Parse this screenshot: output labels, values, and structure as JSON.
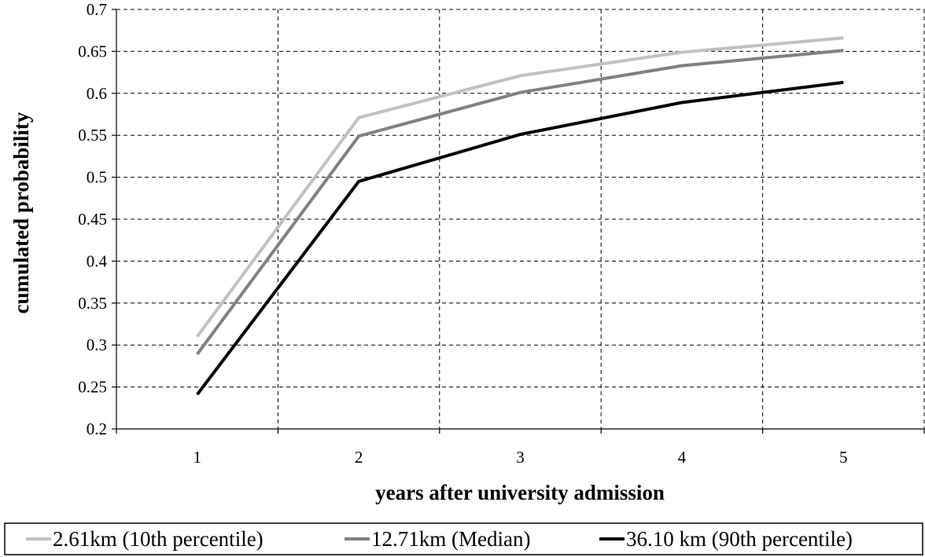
{
  "chart_data": {
    "type": "line",
    "title": "",
    "xlabel": "years after university admission",
    "ylabel": "cumulated probability",
    "categories": [
      "1",
      "2",
      "3",
      "4",
      "5"
    ],
    "ylim": [
      0.2,
      0.7
    ],
    "yticks": [
      "0.2",
      "0.25",
      "0.3",
      "0.35",
      "0.4",
      "0.45",
      "0.5",
      "0.55",
      "0.6",
      "0.65",
      "0.7"
    ],
    "grid": true,
    "legend_position": "bottom",
    "series": [
      {
        "name": "2.61km (10th percentile)",
        "color": "#c0c0c0",
        "values": [
          0.31,
          0.571,
          0.621,
          0.649,
          0.666
        ]
      },
      {
        "name": "12.71km (Median)",
        "color": "#808080",
        "values": [
          0.289,
          0.549,
          0.601,
          0.633,
          0.651
        ]
      },
      {
        "name": "36.10 km (90th percentile)",
        "color": "#000000",
        "values": [
          0.241,
          0.495,
          0.551,
          0.589,
          0.613
        ]
      }
    ]
  }
}
